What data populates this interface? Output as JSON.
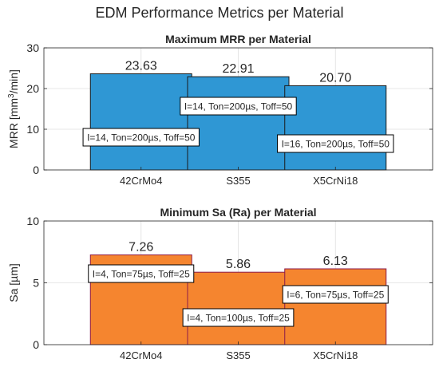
{
  "figure_title": "EDM Performance Metrics per Material",
  "chart_data": [
    {
      "type": "bar",
      "title": "Maximum MRR per Material",
      "xlabel": "",
      "ylabel_text": "MRR [mm",
      "ylabel_sup": "3",
      "ylabel_tail": "/min]",
      "categories": [
        "42CrMo4",
        "S355",
        "X5CrNi18"
      ],
      "values": [
        23.63,
        22.91,
        20.7
      ],
      "value_labels": [
        "23.63",
        "22.91",
        "20.70"
      ],
      "annotations": [
        "I=14, Ton=200µs, Toff=50",
        "I=14, Ton=200µs, Toff=50",
        "I=16, Ton=200µs, Toff=50"
      ],
      "ylim": [
        0,
        30
      ],
      "yticks": [
        "0",
        "10",
        "20",
        "30"
      ],
      "grid": true,
      "bar_color": "#2f97d4",
      "bar_edge": "#1a1a1a"
    },
    {
      "type": "bar",
      "title": "Minimum Sa (Ra) per Material",
      "xlabel": "",
      "ylabel_text": "Sa [µm]",
      "categories": [
        "42CrMo4",
        "S355",
        "X5CrNi18"
      ],
      "values": [
        7.26,
        5.86,
        6.13
      ],
      "value_labels": [
        "7.26",
        "5.86",
        "6.13"
      ],
      "annotations": [
        "I=4, Ton=75µs, Toff=25",
        "I=4, Ton=100µs, Toff=25",
        "I=6, Ton=75µs, Toff=25"
      ],
      "ylim": [
        0,
        10
      ],
      "yticks": [
        "0",
        "5",
        "10"
      ],
      "grid": true,
      "bar_color": "#f5852f",
      "bar_edge": "#8a1a4a"
    }
  ]
}
